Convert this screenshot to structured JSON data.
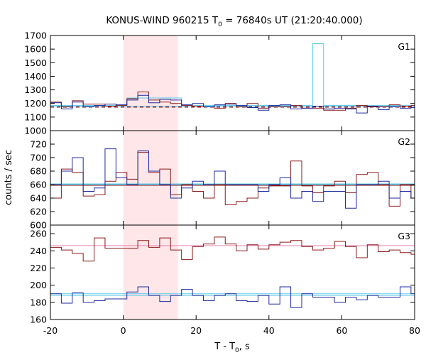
{
  "chart_data": {
    "type": "line",
    "title": "KONUS-WIND 960215 T",
    "title_sub": "0",
    "title_rest": " = 76840s UT (21:20:40.000)",
    "xlabel": "T - T",
    "xlabel_sub": "0",
    "xlabel_rest": ", s",
    "ylabel": "counts / sec",
    "xlim": [
      -20,
      80
    ],
    "x_ticks": [
      "-20",
      "0",
      "20",
      "40",
      "60",
      "80"
    ],
    "x_tick_values": [
      -20,
      0,
      20,
      40,
      60,
      80
    ],
    "shaded_interval": [
      0,
      15
    ],
    "bin_edges": [
      -20,
      -17,
      -14,
      -11,
      -8,
      -5,
      -2,
      1,
      4,
      7,
      10,
      13,
      16,
      19,
      22,
      25,
      28,
      31,
      34,
      37,
      40,
      43,
      46,
      49,
      52,
      55,
      58,
      61,
      64,
      67,
      70,
      73,
      76,
      79,
      80
    ],
    "panels": [
      {
        "label": "G1",
        "ylim": [
          1000,
          1700
        ],
        "y_ticks": [
          "1000",
          "1100",
          "1200",
          "1300",
          "1400",
          "1500",
          "1600",
          "1700"
        ],
        "y_tick_values": [
          1000,
          1100,
          1200,
          1300,
          1400,
          1500,
          1600,
          1700
        ],
        "series": [
          {
            "color": "#1f2a9c",
            "values": [
              1205,
              1160,
              1210,
              1175,
              1185,
              1195,
              1190,
              1225,
              1260,
              1205,
              1230,
              1225,
              1190,
              1200,
              1175,
              1190,
              1195,
              1185,
              1170,
              1150,
              1185,
              1190,
              1160,
              1165,
              1180,
              1160,
              1165,
              1160,
              1130,
              1180,
              1155,
              1175,
              1165,
              1170
            ]
          },
          {
            "color": "#8b1a1a",
            "values": [
              1210,
              1175,
              1220,
              1195,
              1195,
              1180,
              1185,
              1235,
              1285,
              1225,
              1210,
              1200,
              1185,
              1180,
              1175,
              1165,
              1200,
              1175,
              1200,
              1165,
              1175,
              1175,
              1185,
              1165,
              1165,
              1150,
              1150,
              1165,
              1185,
              1175,
              1175,
              1190,
              1180,
              1185
            ]
          },
          {
            "color": "#5ec8e8",
            "values": [
              1185,
              1185,
              1185,
              1185,
              1185,
              1185,
              1185,
              1240,
              1240,
              1240,
              1240,
              1240,
              1185,
              1185,
              1185,
              1185,
              1185,
              1185,
              1185,
              1185,
              1185,
              1185,
              1185,
              1185,
              1640,
              1185,
              1185,
              1185,
              1185,
              1185,
              1185,
              1185,
              1185,
              1185
            ]
          }
        ],
        "background_lines": [
          {
            "color": "#8b1a1a",
            "y": 1175,
            "dashed": true
          },
          {
            "color": "#5ec8e8",
            "y": 1180,
            "dashed": false
          }
        ]
      },
      {
        "label": "G2",
        "ylim": [
          600,
          740
        ],
        "y_ticks": [
          "600",
          "620",
          "640",
          "660",
          "680",
          "700",
          "720"
        ],
        "y_tick_values": [
          600,
          620,
          640,
          660,
          680,
          700,
          720
        ],
        "series": [
          {
            "color": "#1f2a9c",
            "values": [
              660,
              680,
              700,
              650,
              655,
              713,
              670,
              660,
              710,
              680,
              660,
              640,
              655,
              665,
              660,
              680,
              660,
              660,
              660,
              650,
              660,
              670,
              640,
              650,
              635,
              650,
              650,
              625,
              660,
              660,
              665,
              640,
              650,
              640
            ]
          },
          {
            "color": "#8b1a1a",
            "values": [
              640,
              683,
              678,
              643,
              645,
              665,
              678,
              668,
              708,
              678,
              683,
              645,
              660,
              650,
              640,
              660,
              630,
              635,
              640,
              655,
              658,
              658,
              695,
              658,
              648,
              658,
              665,
              648,
              675,
              678,
              660,
              628,
              660,
              640
            ]
          },
          {
            "color": "#5ec8e8",
            "values": [
              660,
              660,
              660,
              660,
              660,
              660,
              660,
              660,
              660,
              660,
              660,
              660,
              660,
              660,
              660,
              660,
              660,
              660,
              660,
              660,
              660,
              660,
              660,
              660,
              660,
              660,
              660,
              660,
              660,
              660,
              660,
              660,
              660,
              660
            ]
          }
        ],
        "background_lines": [
          {
            "color": "#8b1a1a",
            "y": 659,
            "dashed": false
          },
          {
            "color": "#5ec8e8",
            "y": 661,
            "dashed": false
          }
        ]
      },
      {
        "label": "G3",
        "ylim": [
          160,
          270
        ],
        "y_ticks": [
          "160",
          "180",
          "200",
          "220",
          "240",
          "260"
        ],
        "y_tick_values": [
          160,
          180,
          200,
          220,
          240,
          260
        ],
        "series": [
          {
            "color": "#1f2a9c",
            "values": [
              190,
              179,
              191,
              180,
              182,
              184,
              184,
              192,
              198,
              188,
              181,
              188,
              195,
              188,
              182,
              188,
              190,
              182,
              181,
              188,
              178,
              198,
              174,
              190,
              186,
              186,
              180,
              186,
              183,
              188,
              186,
              186,
              198,
              190
            ]
          },
          {
            "color": "#8b1a1a",
            "values": [
              244,
              241,
              237,
              228,
              255,
              243,
              243,
              243,
              252,
              244,
              255,
              241,
              230,
              245,
              248,
              256,
              248,
              240,
              247,
              242,
              247,
              250,
              252,
              245,
              241,
              243,
              251,
              245,
              232,
              247,
              239,
              241,
              238,
              236
            ]
          },
          {
            "color": "#5ec8e8",
            "values": [
              188,
              188,
              188,
              188,
              188,
              188,
              188,
              188,
              188,
              188,
              188,
              188,
              188,
              188,
              188,
              188,
              188,
              188,
              188,
              188,
              188,
              188,
              188,
              188,
              188,
              188,
              188,
              188,
              188,
              188,
              188,
              188,
              188,
              188
            ]
          }
        ],
        "background_lines": [
          {
            "color": "#e080b0",
            "y": 246,
            "dashed": false
          },
          {
            "color": "#5ec8e8",
            "y": 190,
            "dashed": false
          }
        ]
      }
    ]
  }
}
